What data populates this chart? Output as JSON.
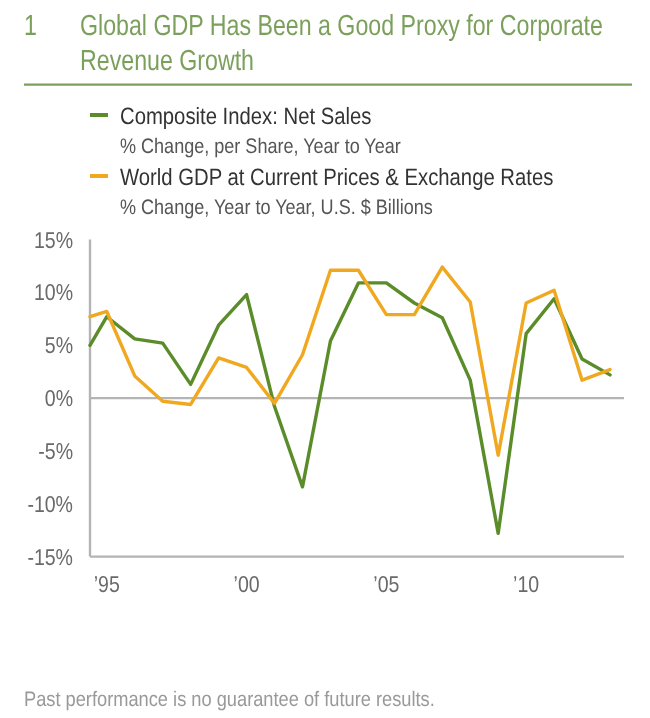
{
  "chart_data": {
    "type": "line",
    "title": "1 Global GDP Has Been a Good Proxy for Corporate Revenue Growth",
    "x": [
      1994.4,
      1995,
      1996,
      1997,
      1998,
      1999,
      2000,
      2001,
      2002,
      2003,
      2004,
      2005,
      2006,
      2007,
      2008,
      2009,
      2010,
      2011,
      2012,
      2013
    ],
    "series": [
      {
        "name": "Composite Index: Net Sales\n% Change, per Share, Year to Year",
        "color": "#5b8c2a",
        "values": [
          5.0,
          7.7,
          5.6,
          5.2,
          1.3,
          6.9,
          9.8,
          -0.8,
          -8.4,
          5.4,
          10.9,
          10.9,
          9.0,
          7.6,
          1.7,
          -12.8,
          6.1,
          9.4,
          3.7,
          2.2
        ]
      },
      {
        "name": "World GDP at Current Prices & Exchange Rates\n% Change, Year to Year, U.S. $ Billions",
        "color": "#f0a820",
        "values": [
          7.7,
          8.2,
          2.1,
          -0.3,
          -0.6,
          3.8,
          2.9,
          -0.5,
          4.1,
          12.1,
          12.1,
          7.9,
          7.9,
          12.4,
          9.1,
          -5.4,
          9.0,
          10.2,
          1.7,
          2.7
        ]
      }
    ],
    "xlim": [
      1994.4,
      2013.5
    ],
    "xticks": [
      {
        "value": 1995,
        "label": "’95"
      },
      {
        "value": 2000,
        "label": "’00"
      },
      {
        "value": 2005,
        "label": "’05"
      },
      {
        "value": 2010,
        "label": "’10"
      }
    ],
    "ylim": [
      -15,
      15
    ],
    "yticks": [
      {
        "value": 15,
        "label": "15%"
      },
      {
        "value": 10,
        "label": "10%"
      },
      {
        "value": 5,
        "label": "5%"
      },
      {
        "value": 0,
        "label": "0%"
      },
      {
        "value": -5,
        "label": "-5%"
      },
      {
        "value": -10,
        "label": "-10%"
      },
      {
        "value": -15,
        "label": "-15%"
      }
    ],
    "ref_lines": [
      {
        "axis": "y",
        "value": 0,
        "color": "#b4b4b4"
      }
    ],
    "legend": "top",
    "line_style": "solid",
    "annotations": [
      "Past performance is no guarantee of future results."
    ]
  }
}
